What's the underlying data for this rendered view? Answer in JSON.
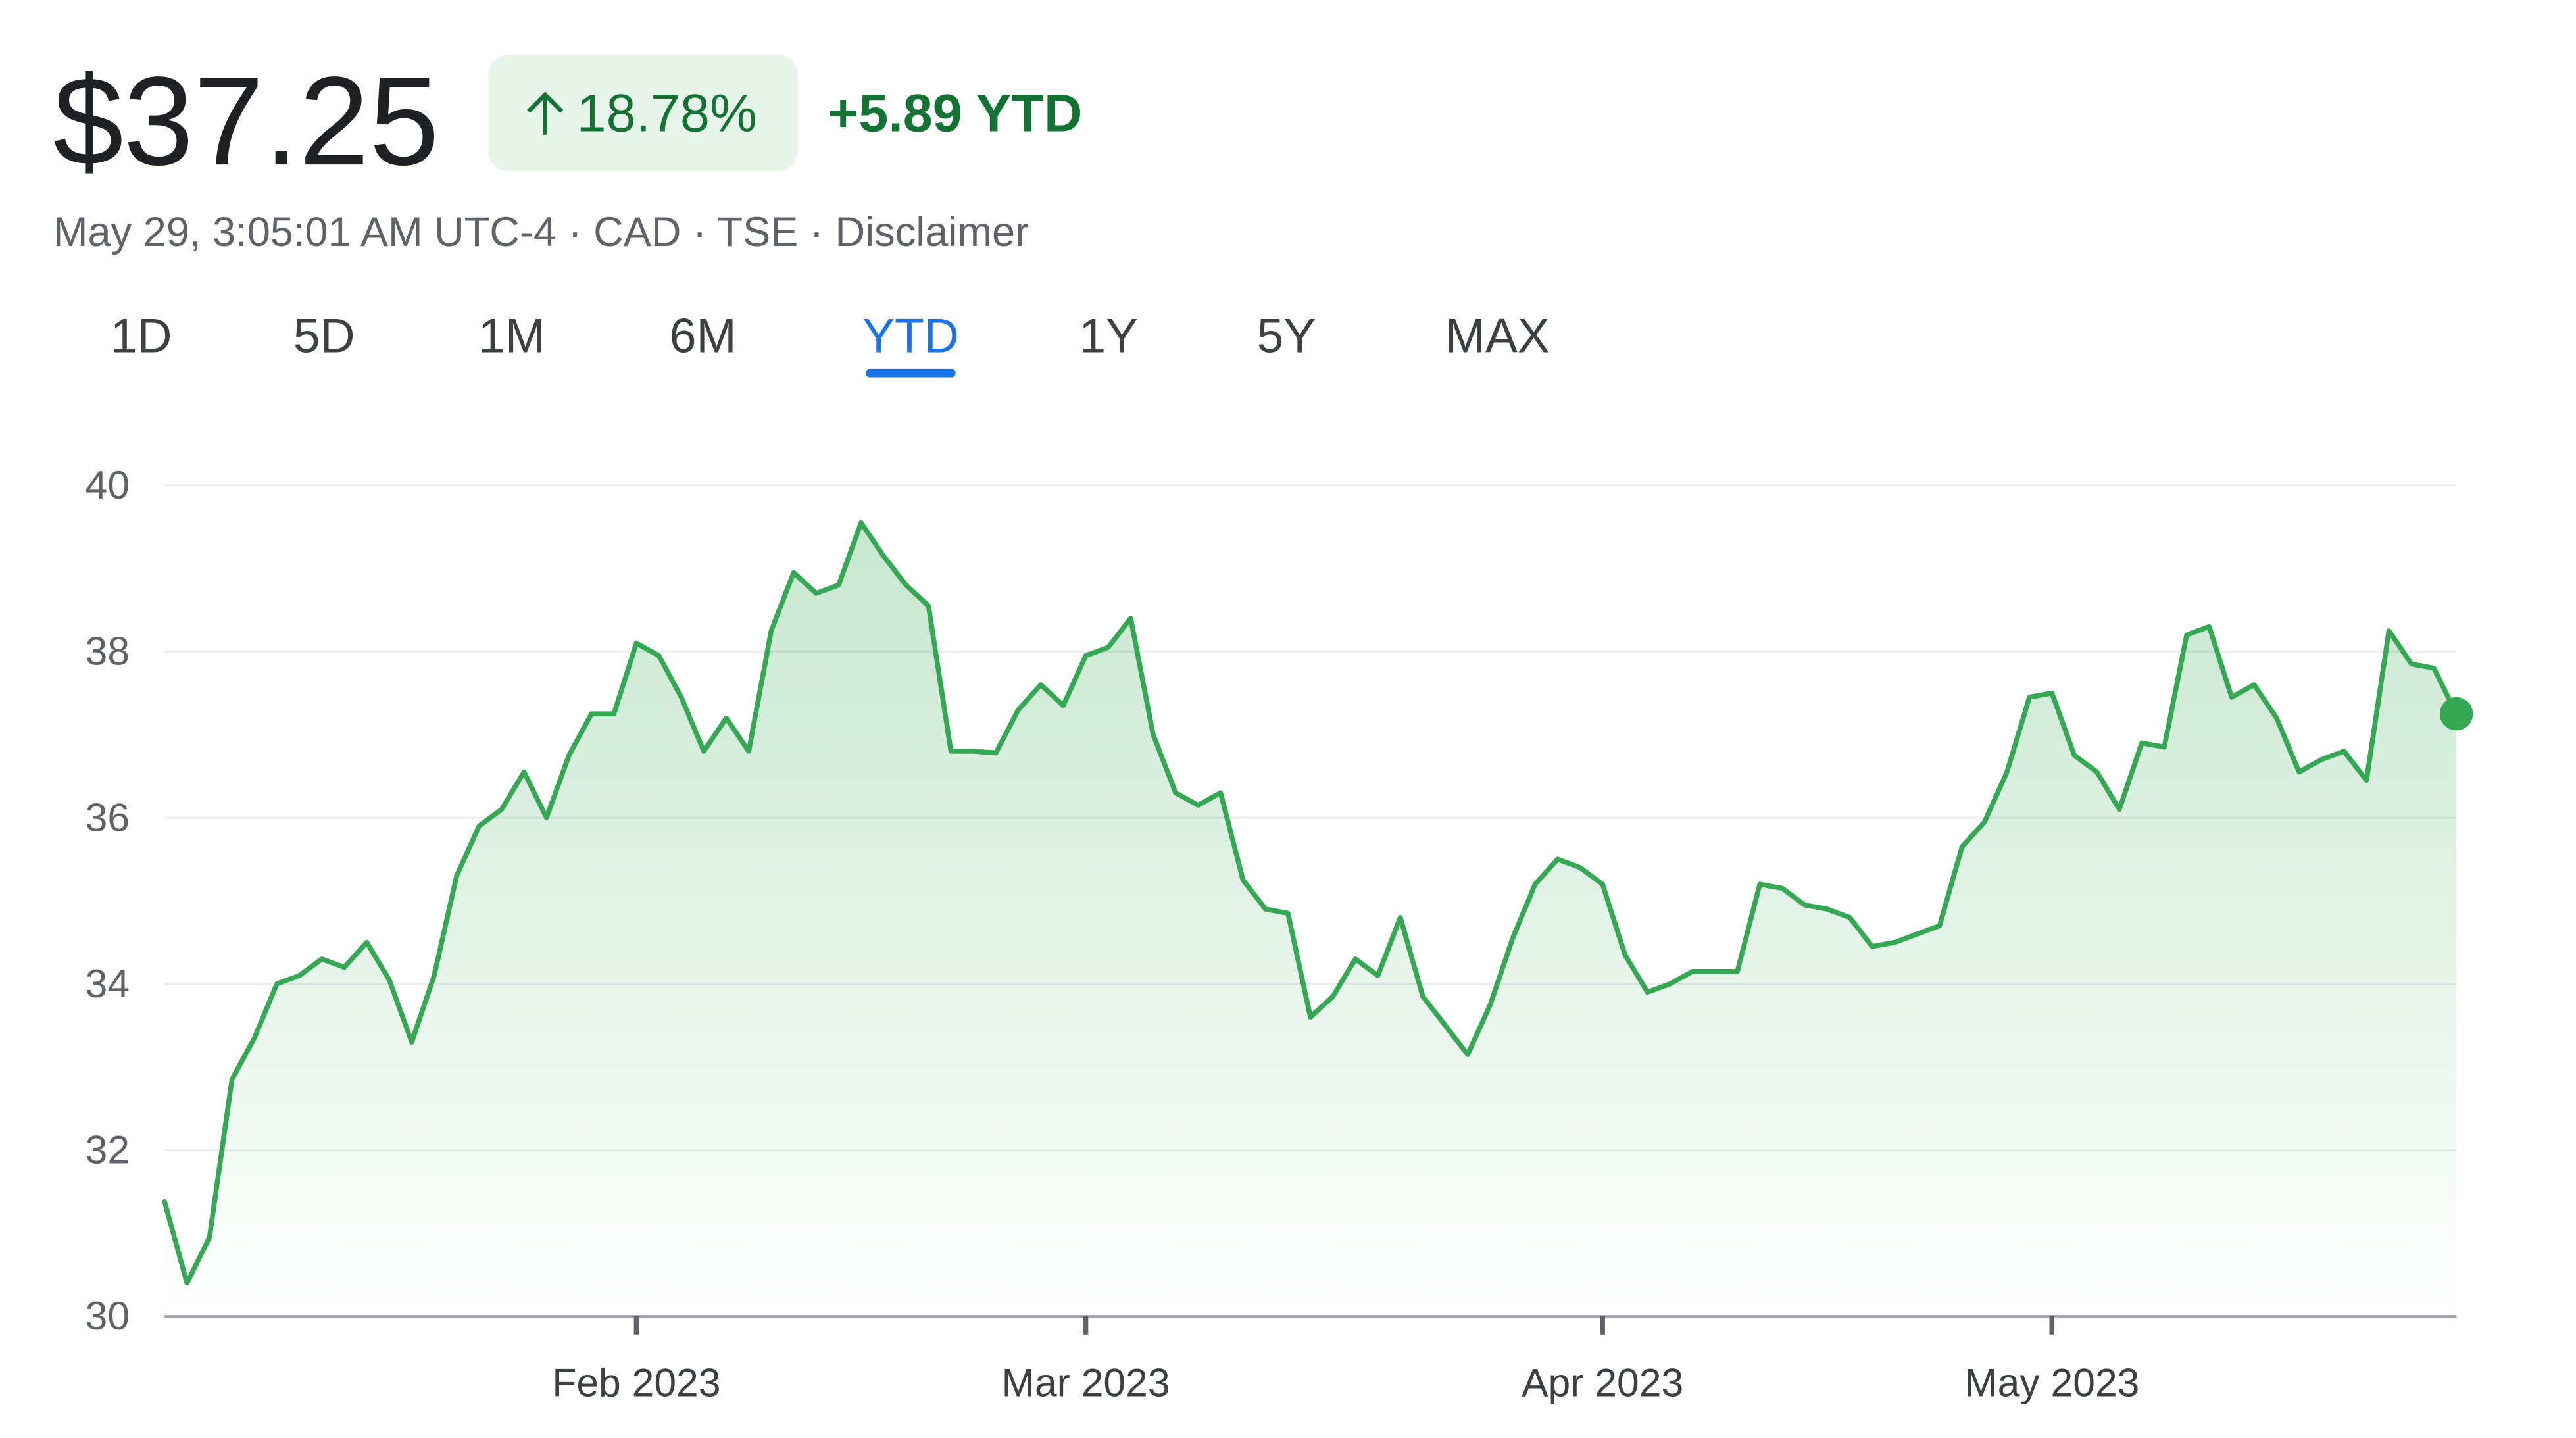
{
  "header": {
    "price": "$37.25",
    "change_percent": "18.78%",
    "change_ytd": "+5.89 YTD",
    "meta": "May 29, 3:05:01 AM UTC-4 · CAD · TSE · Disclaimer"
  },
  "tabs": {
    "labels": [
      "1D",
      "5D",
      "1M",
      "6M",
      "YTD",
      "1Y",
      "5Y",
      "MAX"
    ],
    "selected": 4
  },
  "chart_data": {
    "type": "line",
    "color": "#34a853",
    "grid": true,
    "values": [
      31.38,
      30.4,
      30.95,
      32.85,
      33.35,
      34.0,
      34.1,
      34.3,
      34.2,
      34.5,
      34.05,
      33.3,
      34.1,
      35.3,
      35.9,
      36.1,
      36.55,
      36.0,
      36.75,
      37.25,
      37.25,
      38.1,
      37.95,
      37.45,
      36.8,
      37.2,
      36.8,
      38.25,
      38.95,
      38.7,
      38.8,
      39.55,
      39.15,
      38.8,
      38.55,
      36.8,
      36.8,
      36.78,
      37.3,
      37.6,
      37.35,
      37.95,
      38.05,
      38.4,
      37.0,
      36.3,
      36.15,
      36.3,
      35.25,
      34.9,
      34.85,
      33.6,
      33.85,
      34.3,
      34.1,
      34.8,
      33.85,
      33.5,
      33.15,
      33.75,
      34.55,
      35.2,
      35.5,
      35.4,
      35.2,
      34.35,
      33.9,
      34.0,
      34.15,
      34.15,
      34.15,
      35.2,
      35.15,
      34.95,
      34.9,
      34.8,
      34.45,
      34.5,
      34.6,
      34.7,
      35.65,
      35.95,
      36.55,
      37.45,
      37.5,
      36.75,
      36.55,
      36.1,
      36.9,
      36.85,
      38.2,
      38.3,
      37.45,
      37.6,
      37.2,
      36.55,
      36.7,
      36.8,
      36.45,
      38.25,
      37.85,
      37.8,
      37.25
    ],
    "xlim": [
      0,
      102
    ],
    "xticks": [
      {
        "value": 21,
        "label": "Feb 2023"
      },
      {
        "value": 41,
        "label": "Mar 2023"
      },
      {
        "value": 64,
        "label": "Apr 2023"
      },
      {
        "value": 84,
        "label": "May 2023"
      }
    ],
    "ylim": [
      30,
      40
    ],
    "yticks": [
      30,
      32,
      34,
      36,
      38,
      40
    ]
  }
}
